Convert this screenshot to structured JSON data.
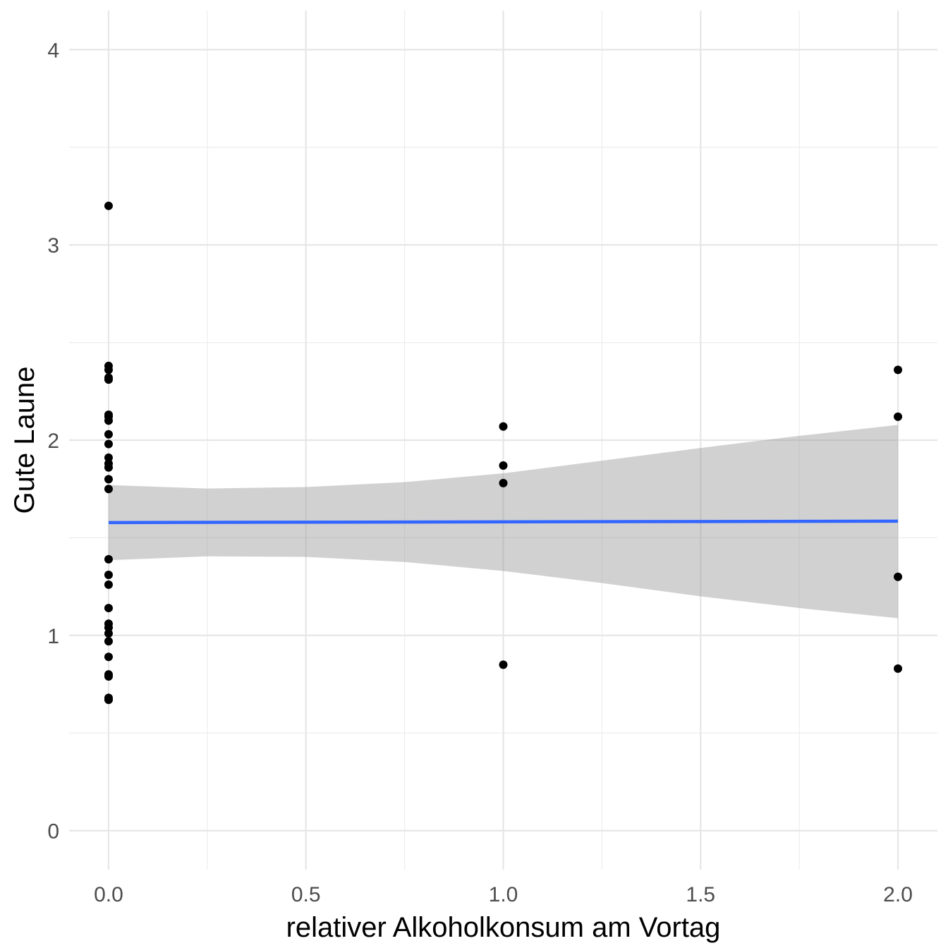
{
  "chart_data": {
    "type": "scatter",
    "title": "",
    "xlabel": "relativer Alkoholkonsum am Vortag",
    "ylabel": "Gute Laune",
    "xlim": [
      -0.1,
      2.1
    ],
    "ylim": [
      -0.2,
      4.2
    ],
    "x_ticks": [
      0.0,
      0.5,
      1.0,
      1.5,
      2.0
    ],
    "x_tick_labels": [
      "0.0",
      "0.5",
      "1.0",
      "1.5",
      "2.0"
    ],
    "y_ticks": [
      0,
      1,
      2,
      3,
      4
    ],
    "y_tick_labels": [
      "0",
      "1",
      "2",
      "3",
      "4"
    ],
    "grid": true,
    "point_color": "#000000",
    "points": [
      {
        "x": 0,
        "y": 3.2
      },
      {
        "x": 0,
        "y": 2.38
      },
      {
        "x": 0,
        "y": 2.36
      },
      {
        "x": 0,
        "y": 2.32
      },
      {
        "x": 0,
        "y": 2.31
      },
      {
        "x": 0,
        "y": 2.13
      },
      {
        "x": 0,
        "y": 2.12
      },
      {
        "x": 0,
        "y": 2.1
      },
      {
        "x": 0,
        "y": 2.03
      },
      {
        "x": 0,
        "y": 1.98
      },
      {
        "x": 0,
        "y": 1.91
      },
      {
        "x": 0,
        "y": 1.88
      },
      {
        "x": 0,
        "y": 1.86
      },
      {
        "x": 0,
        "y": 1.8
      },
      {
        "x": 0,
        "y": 1.75
      },
      {
        "x": 0,
        "y": 1.39
      },
      {
        "x": 0,
        "y": 1.31
      },
      {
        "x": 0,
        "y": 1.26
      },
      {
        "x": 0,
        "y": 1.14
      },
      {
        "x": 0,
        "y": 1.06
      },
      {
        "x": 0,
        "y": 1.04
      },
      {
        "x": 0,
        "y": 1.01
      },
      {
        "x": 0,
        "y": 0.97
      },
      {
        "x": 0,
        "y": 0.89
      },
      {
        "x": 0,
        "y": 0.8
      },
      {
        "x": 0,
        "y": 0.79
      },
      {
        "x": 0,
        "y": 0.68
      },
      {
        "x": 0,
        "y": 0.67
      },
      {
        "x": 1,
        "y": 2.07
      },
      {
        "x": 1,
        "y": 1.87
      },
      {
        "x": 1,
        "y": 1.78
      },
      {
        "x": 1,
        "y": 0.85
      },
      {
        "x": 2,
        "y": 2.36
      },
      {
        "x": 2,
        "y": 2.12
      },
      {
        "x": 2,
        "y": 1.3
      },
      {
        "x": 2,
        "y": 0.83
      }
    ],
    "fit_line": {
      "color": "#3366ff",
      "x": [
        0,
        2
      ],
      "y": [
        1.578,
        1.585
      ]
    },
    "confidence_band": {
      "color": "#999999",
      "x": [
        0.0,
        0.25,
        0.5,
        0.75,
        1.0,
        1.25,
        1.5,
        1.75,
        2.0
      ],
      "lower": [
        1.385,
        1.405,
        1.402,
        1.376,
        1.33,
        1.268,
        1.2,
        1.14,
        1.088
      ],
      "upper": [
        1.77,
        1.752,
        1.76,
        1.785,
        1.83,
        1.895,
        1.96,
        2.022,
        2.078
      ]
    }
  }
}
